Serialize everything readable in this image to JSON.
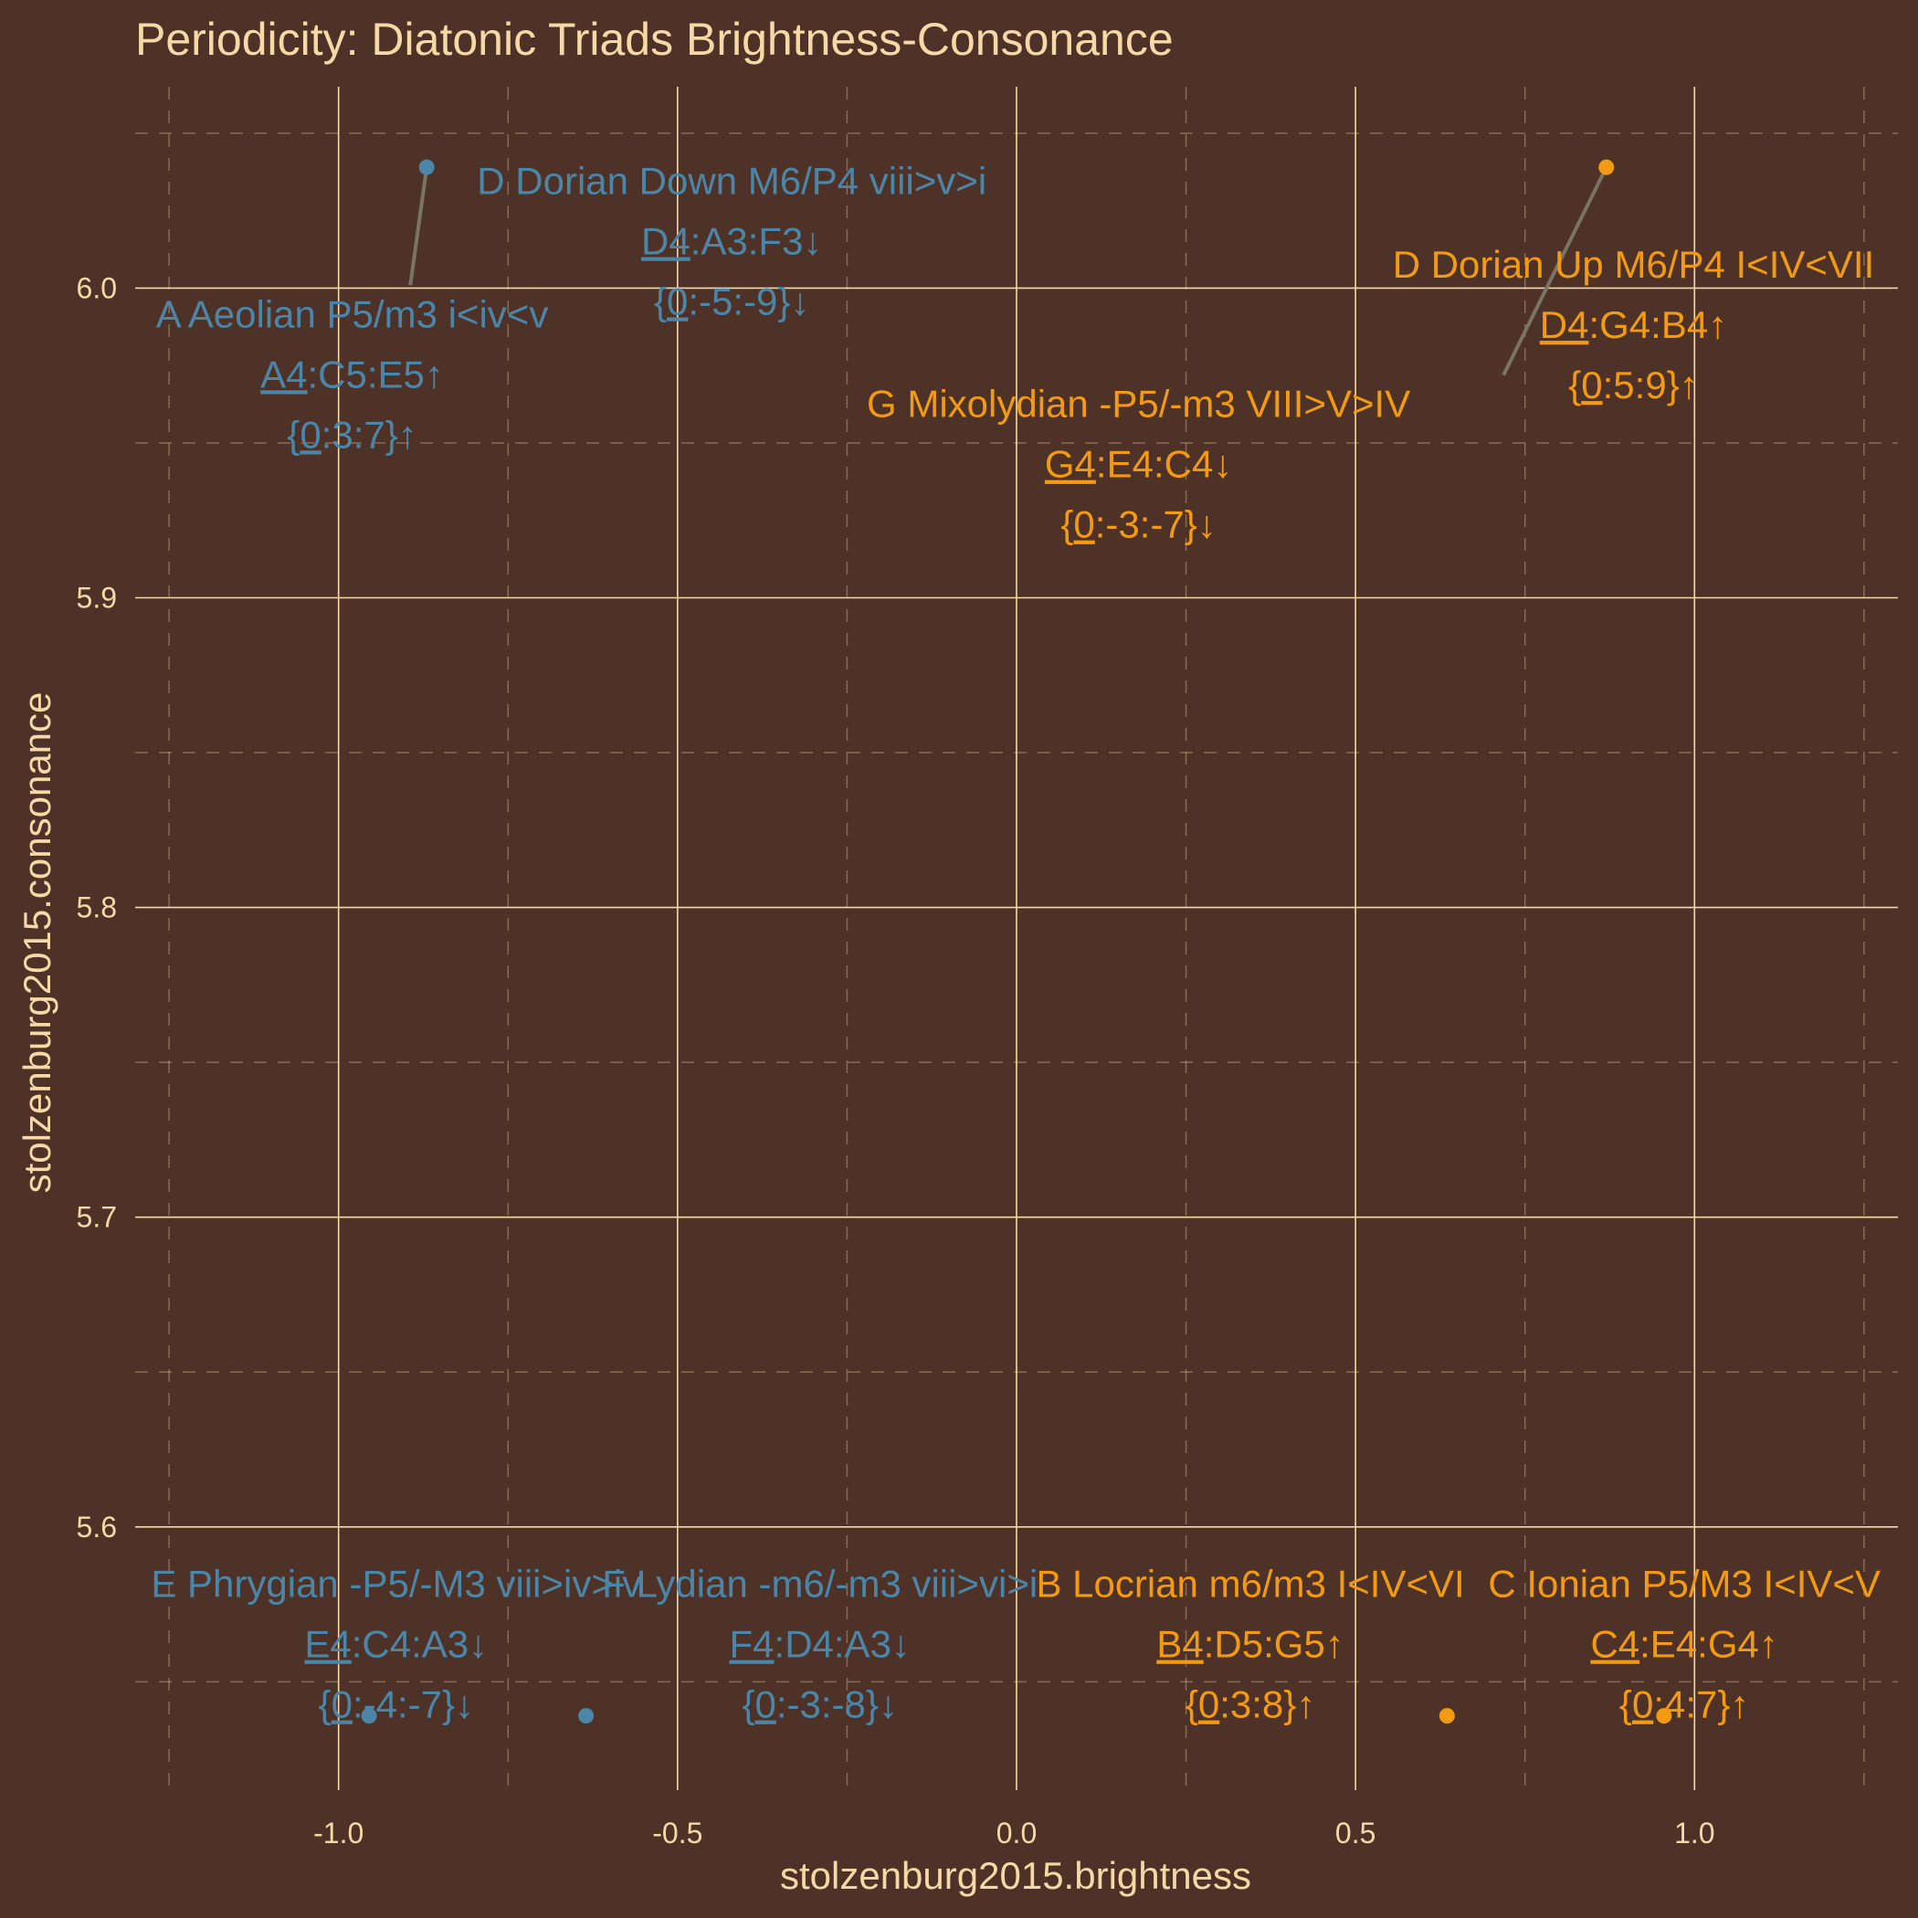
{
  "chart_data": {
    "type": "scatter",
    "title": "Periodicity: Diatonic Triads Brightness-Consonance",
    "xlabel": "stolzenburg2015.brightness",
    "ylabel": "stolzenburg2015.consonance",
    "xlim": [
      -1.3,
      1.3
    ],
    "ylim": [
      5.515,
      6.065
    ],
    "x_ticks": [
      -1.0,
      -0.5,
      0.0,
      0.5,
      1.0
    ],
    "x_tick_labels": [
      "-1.0",
      "-0.5",
      "0.0",
      "0.5",
      "1.0"
    ],
    "y_ticks": [
      5.6,
      5.7,
      5.8,
      5.9,
      6.0
    ],
    "y_tick_labels": [
      "5.6",
      "5.7",
      "5.8",
      "5.9",
      "6.0"
    ],
    "grid": true,
    "legend": "none",
    "colors": {
      "background": "#4e3227",
      "grid_major": "#f6d9a6",
      "text": "#f6d9a6",
      "minor": "#4b86a8",
      "major": "#f29a12",
      "connector": "#7a7462"
    },
    "points": [
      {
        "x": -0.87,
        "y": 6.039,
        "group": "minor",
        "label_x": -0.42,
        "label_y": 6.015,
        "lines": [
          [
            {
              "t": "D Dorian Down M6/P4 viii>v>i"
            }
          ],
          [
            {
              "t": "D4",
              "u": true
            },
            {
              "t": ":A3:F3↓"
            }
          ],
          [
            {
              "t": "{"
            },
            {
              "t": "0",
              "u": true
            },
            {
              "t": ":-5:-9}↓"
            }
          ]
        ]
      },
      {
        "x": -0.87,
        "y": 6.039,
        "group": "minor",
        "label_x": -0.98,
        "label_y": 5.972,
        "connector": true,
        "lines": [
          [
            {
              "t": "A Aeolian P5/m3 i<iv<v"
            }
          ],
          [
            {
              "t": "A4",
              "u": true
            },
            {
              "t": ":C5:E5↑"
            }
          ],
          [
            {
              "t": "{"
            },
            {
              "t": "0",
              "u": true
            },
            {
              "t": ":3:7}↑"
            }
          ]
        ]
      },
      {
        "x": 0.87,
        "y": 6.039,
        "group": "major",
        "label_x": 0.91,
        "label_y": 5.988,
        "lines": [
          [
            {
              "t": "D Dorian Up M6/P4 I<IV<VII"
            }
          ],
          [
            {
              "t": "D4",
              "u": true
            },
            {
              "t": ":G4:B4↑"
            }
          ],
          [
            {
              "t": "{"
            },
            {
              "t": "0",
              "u": true
            },
            {
              "t": ":5:9}↑"
            }
          ]
        ]
      },
      {
        "x": 0.87,
        "y": 6.039,
        "group": "major",
        "label_x": 0.18,
        "label_y": 5.943,
        "connector": true,
        "lines": [
          [
            {
              "t": "G Mixolydian -P5/-m3 VIII>V>IV"
            }
          ],
          [
            {
              "t": "G4",
              "u": true
            },
            {
              "t": ":E4:C4↓"
            }
          ],
          [
            {
              "t": "{"
            },
            {
              "t": "0",
              "u": true
            },
            {
              "t": ":-3:-7}↓"
            }
          ]
        ]
      },
      {
        "x": -0.955,
        "y": 5.539,
        "group": "minor",
        "label_x": -0.915,
        "label_y": 5.562,
        "lines": [
          [
            {
              "t": "E Phrygian -P5/-M3 viii>iv>iv"
            }
          ],
          [
            {
              "t": "E4",
              "u": true
            },
            {
              "t": ":C4:A3↓"
            }
          ],
          [
            {
              "t": "{"
            },
            {
              "t": "0",
              "u": true
            },
            {
              "t": ":-4:-7}↓"
            }
          ]
        ]
      },
      {
        "x": -0.635,
        "y": 5.539,
        "group": "minor",
        "label_x": -0.29,
        "label_y": 5.562,
        "lines": [
          [
            {
              "t": "F Lydian -m6/-m3 viii>vi>i"
            }
          ],
          [
            {
              "t": "F4",
              "u": true
            },
            {
              "t": ":D4:A3↓"
            }
          ],
          [
            {
              "t": "{"
            },
            {
              "t": "0",
              "u": true
            },
            {
              "t": ":-3:-8}↓"
            }
          ]
        ]
      },
      {
        "x": 0.635,
        "y": 5.539,
        "group": "major",
        "label_x": 0.345,
        "label_y": 5.562,
        "lines": [
          [
            {
              "t": "B Locrian m6/m3 I<IV<VI"
            }
          ],
          [
            {
              "t": "B4",
              "u": true
            },
            {
              "t": ":D5:G5↑"
            }
          ],
          [
            {
              "t": "{"
            },
            {
              "t": "0",
              "u": true
            },
            {
              "t": ":3:8}↑"
            }
          ]
        ]
      },
      {
        "x": 0.955,
        "y": 5.539,
        "group": "major",
        "label_x": 0.985,
        "label_y": 5.562,
        "lines": [
          [
            {
              "t": "C Ionian P5/M3 I<IV<V"
            }
          ],
          [
            {
              "t": "C4",
              "u": true
            },
            {
              "t": ":E4:G4↑"
            }
          ],
          [
            {
              "t": "{"
            },
            {
              "t": "0",
              "u": true
            },
            {
              "t": ":4:7}↑"
            }
          ]
        ]
      }
    ]
  }
}
